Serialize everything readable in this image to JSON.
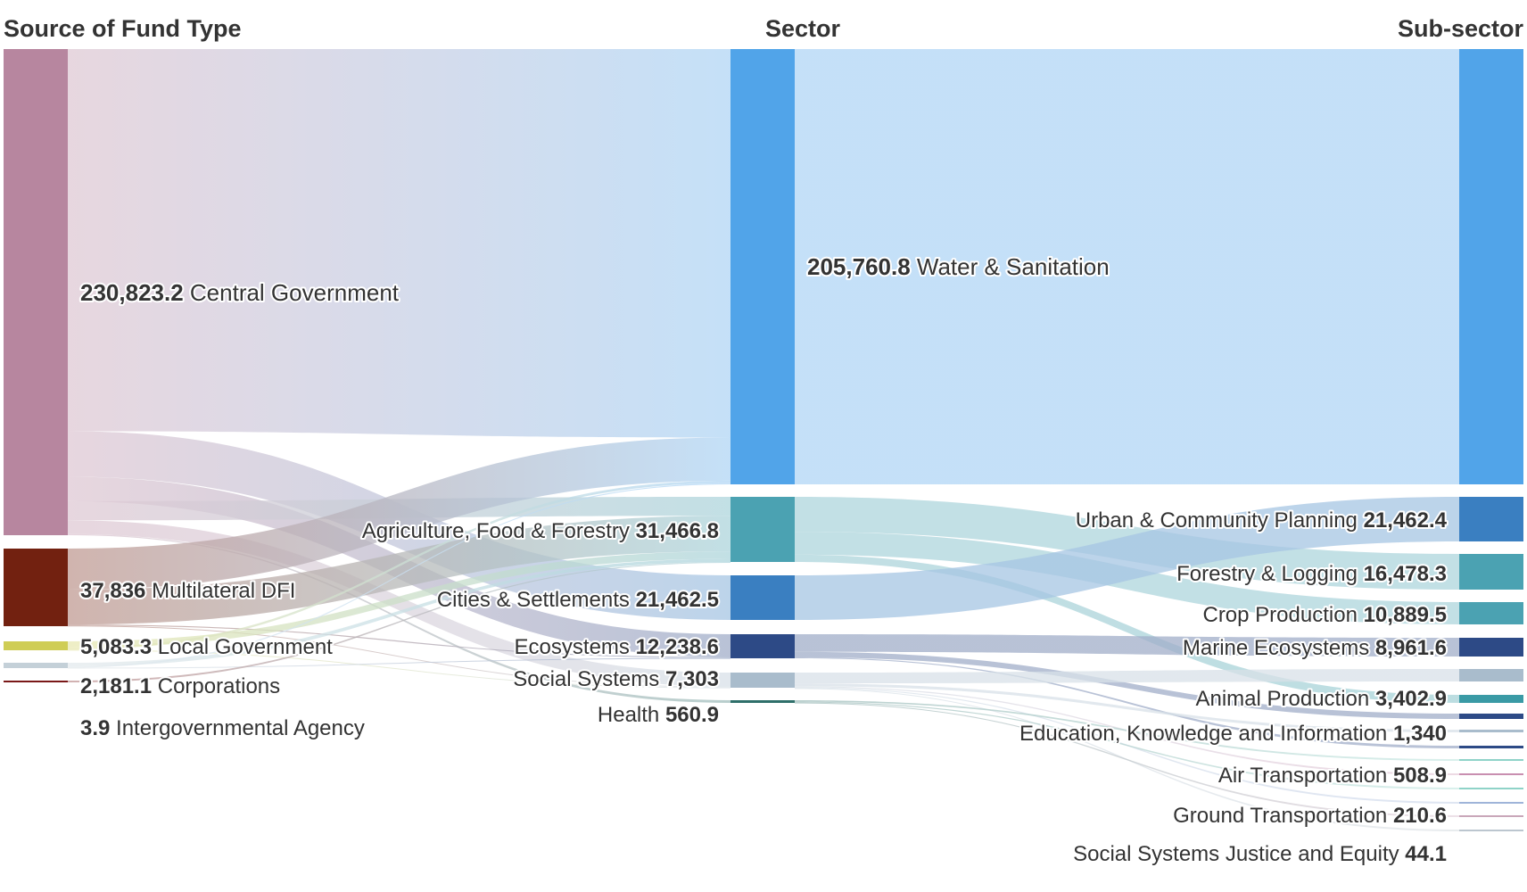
{
  "chart_data": {
    "type": "sankey",
    "column_headers": [
      "Source of Fund Type",
      "Sector",
      "Sub-sector"
    ],
    "nodes": [
      {
        "id": "cg",
        "name": "Central Government",
        "value": "230,823.2",
        "column": 0,
        "color": "#b7869f"
      },
      {
        "id": "mdfi",
        "name": "Multilateral DFI",
        "value": "37,836",
        "column": 0,
        "color": "#722110"
      },
      {
        "id": "lg",
        "name": "Local Government",
        "value": "5,083.3",
        "column": 0,
        "color": "#cfcd55"
      },
      {
        "id": "corp",
        "name": "Corporations",
        "value": "2,181.1",
        "column": 0,
        "color": "#c4d0d8"
      },
      {
        "id": "iga",
        "name": "Intergovernmental Agency",
        "value": "3.9",
        "column": 0,
        "color": "#7a1818"
      },
      {
        "id": "ws",
        "name": "Water & Sanitation",
        "value": "205,760.8",
        "column": 1,
        "color": "#51a4e9"
      },
      {
        "id": "aff",
        "name": "Agriculture, Food & Forestry",
        "value": "31,466.8",
        "column": 1,
        "color": "#4ba2b2"
      },
      {
        "id": "cs",
        "name": "Cities & Settlements",
        "value": "21,462.5",
        "column": 1,
        "color": "#3a7fc1"
      },
      {
        "id": "eco",
        "name": "Ecosystems",
        "value": "12,238.6",
        "column": 1,
        "color": "#2d4a86"
      },
      {
        "id": "ss",
        "name": "Social Systems",
        "value": "7,303",
        "column": 1,
        "color": "#a9bccc"
      },
      {
        "id": "hl",
        "name": "Health",
        "value": "560.9",
        "column": 1,
        "color": "#2f6f6a"
      },
      {
        "id": "sws",
        "name": "",
        "value": "",
        "column": 2,
        "color": "#51a4e9"
      },
      {
        "id": "ucp",
        "name": "Urban & Community Planning",
        "value": "21,462.4",
        "column": 2,
        "color": "#3a7fc1"
      },
      {
        "id": "fl",
        "name": "Forestry & Logging",
        "value": "16,478.3",
        "column": 2,
        "color": "#4ba2b2"
      },
      {
        "id": "cp",
        "name": "Crop Production",
        "value": "10,889.5",
        "column": 2,
        "color": "#4ba2b2"
      },
      {
        "id": "me",
        "name": "Marine Ecosystems",
        "value": "8,961.6",
        "column": 2,
        "color": "#2d4a86"
      },
      {
        "id": "ssx",
        "name": "",
        "value": "",
        "column": 2,
        "color": "#a9bccc"
      },
      {
        "id": "ap",
        "name": "Animal Production",
        "value": "3,402.9",
        "column": 2,
        "color": "#3a9aa5"
      },
      {
        "id": "eco2",
        "name": "",
        "value": "",
        "column": 2,
        "color": "#2d4a86"
      },
      {
        "id": "eki",
        "name": "Education, Knowledge and Information",
        "value": "1,340",
        "column": 2,
        "color": "#a9bccc"
      },
      {
        "id": "s10",
        "name": "",
        "value": "",
        "column": 2,
        "color": "#2d4a86"
      },
      {
        "id": "s11",
        "name": "",
        "value": "",
        "column": 2,
        "color": "#8fd3c8"
      },
      {
        "id": "at",
        "name": "Air Transportation",
        "value": "508.9",
        "column": 2,
        "color": "#c98fb0"
      },
      {
        "id": "s13",
        "name": "",
        "value": "",
        "column": 2,
        "color": "#8fd3c8"
      },
      {
        "id": "gt",
        "name": "Ground Transportation",
        "value": "210.6",
        "column": 2,
        "color": "#9fb4d9"
      },
      {
        "id": "s15",
        "name": "",
        "value": "",
        "column": 2,
        "color": "#c9a7b9"
      },
      {
        "id": "ssje",
        "name": "Social Systems Justice and Equity",
        "value": "44.1",
        "column": 2,
        "color": "#bcc6cf"
      }
    ],
    "links": [
      {
        "source": "cg",
        "target": "ws",
        "value": 180000
      },
      {
        "source": "cg",
        "target": "cs",
        "value": 21462
      },
      {
        "source": "cg",
        "target": "eco",
        "value": 11500
      },
      {
        "source": "cg",
        "target": "aff",
        "value": 9000
      },
      {
        "source": "cg",
        "target": "ss",
        "value": 6500
      },
      {
        "source": "cg",
        "target": "hl",
        "value": 500
      },
      {
        "source": "mdfi",
        "target": "ws",
        "value": 20000
      },
      {
        "source": "mdfi",
        "target": "aff",
        "value": 17000
      },
      {
        "source": "mdfi",
        "target": "eco",
        "value": 500
      },
      {
        "source": "mdfi",
        "target": "ss",
        "value": 300
      },
      {
        "source": "lg",
        "target": "aff",
        "value": 3500
      },
      {
        "source": "lg",
        "target": "ws",
        "value": 1200
      },
      {
        "source": "lg",
        "target": "ss",
        "value": 300
      },
      {
        "source": "corp",
        "target": "aff",
        "value": 1500
      },
      {
        "source": "corp",
        "target": "ws",
        "value": 500
      },
      {
        "source": "corp",
        "target": "eco",
        "value": 181
      },
      {
        "source": "iga",
        "target": "aff",
        "value": 3.9
      },
      {
        "source": "ws",
        "target": "sws",
        "value": 205760
      },
      {
        "source": "aff",
        "target": "fl",
        "value": 16478
      },
      {
        "source": "aff",
        "target": "cp",
        "value": 10889
      },
      {
        "source": "aff",
        "target": "ap",
        "value": 3402
      },
      {
        "source": "cs",
        "target": "ucp",
        "value": 21462
      },
      {
        "source": "eco",
        "target": "me",
        "value": 8961
      },
      {
        "source": "eco",
        "target": "eco2",
        "value": 2800
      },
      {
        "source": "eco",
        "target": "s10",
        "value": 470
      },
      {
        "source": "ss",
        "target": "ssx",
        "value": 5200
      },
      {
        "source": "ss",
        "target": "eki",
        "value": 1340
      },
      {
        "source": "ss",
        "target": "at",
        "value": 508
      },
      {
        "source": "ss",
        "target": "gt",
        "value": 210
      },
      {
        "source": "ss",
        "target": "ssje",
        "value": 44
      },
      {
        "source": "hl",
        "target": "s11",
        "value": 300
      },
      {
        "source": "hl",
        "target": "s13",
        "value": 200
      },
      {
        "source": "hl",
        "target": "s15",
        "value": 60
      }
    ]
  }
}
